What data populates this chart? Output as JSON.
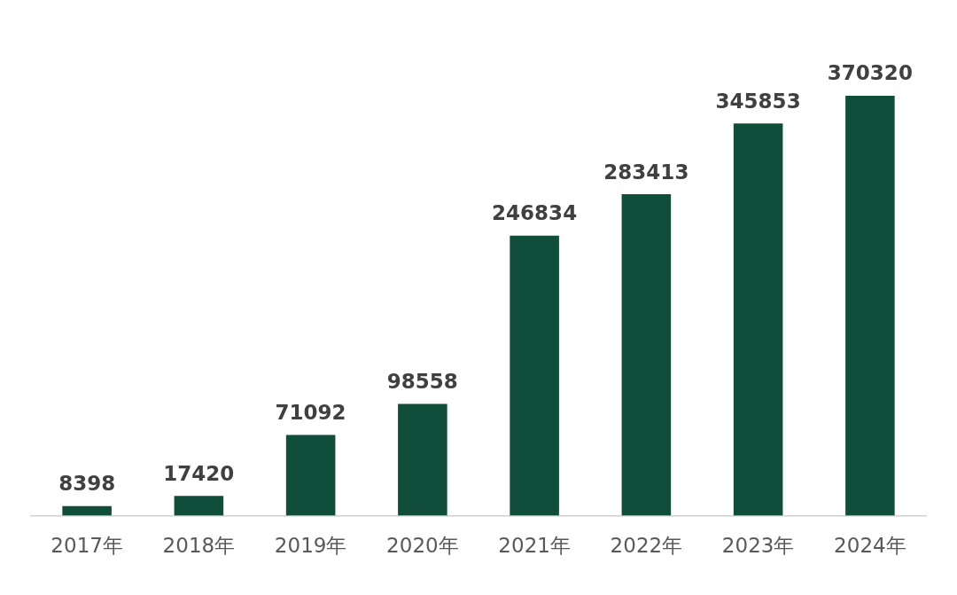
{
  "chart_data": {
    "type": "bar",
    "categories": [
      "2017年",
      "2018年",
      "2019年",
      "2020年",
      "2021年",
      "2022年",
      "2023年",
      "2024年"
    ],
    "values": [
      8398,
      17420,
      71092,
      98558,
      246834,
      283413,
      345853,
      370320
    ],
    "color": "#104d3b",
    "data_labels": true,
    "grid": false,
    "legend": false
  }
}
